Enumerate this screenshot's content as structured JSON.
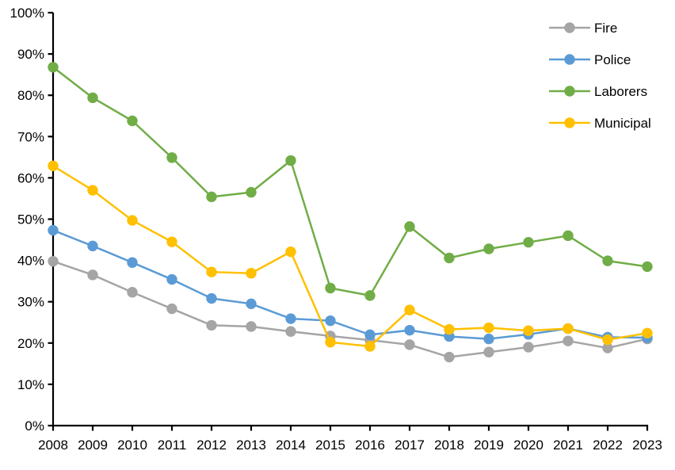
{
  "chart_data": {
    "type": "line",
    "title": "",
    "xlabel": "",
    "ylabel": "",
    "x": [
      "2008",
      "2009",
      "2010",
      "2011",
      "2012",
      "2013",
      "2014",
      "2015",
      "2016",
      "2017",
      "2018",
      "2019",
      "2020",
      "2021",
      "2022",
      "2023"
    ],
    "series": [
      {
        "name": "Fire",
        "color": "#A5A5A5",
        "values": [
          39.8,
          36.5,
          32.3,
          28.3,
          24.3,
          24.0,
          22.8,
          21.7,
          20.7,
          19.6,
          16.6,
          17.8,
          19.0,
          20.5,
          18.8,
          21.0
        ]
      },
      {
        "name": "Police",
        "color": "#5B9BD5",
        "values": [
          47.3,
          43.5,
          39.5,
          35.4,
          30.8,
          29.5,
          25.9,
          25.4,
          22.0,
          23.1,
          21.6,
          21.0,
          22.1,
          23.5,
          21.4,
          21.3
        ]
      },
      {
        "name": "Laborers",
        "color": "#70AD47",
        "values": [
          86.8,
          79.4,
          73.8,
          64.9,
          55.4,
          56.5,
          64.2,
          33.3,
          31.5,
          48.2,
          40.6,
          42.8,
          44.4,
          46.0,
          39.9,
          38.5
        ]
      },
      {
        "name": "Municipal",
        "color": "#FFC000",
        "values": [
          62.9,
          57.0,
          49.7,
          44.5,
          37.2,
          36.9,
          42.1,
          20.2,
          19.2,
          28.0,
          23.3,
          23.7,
          23.0,
          23.5,
          20.8,
          22.4
        ]
      }
    ],
    "ylim": [
      0,
      100
    ],
    "ytick_step": 10,
    "ytick_suffix": "%",
    "grid": false,
    "legend_position": "top-right",
    "axis_color": "#000000",
    "background_color": "#FFFFFF"
  }
}
